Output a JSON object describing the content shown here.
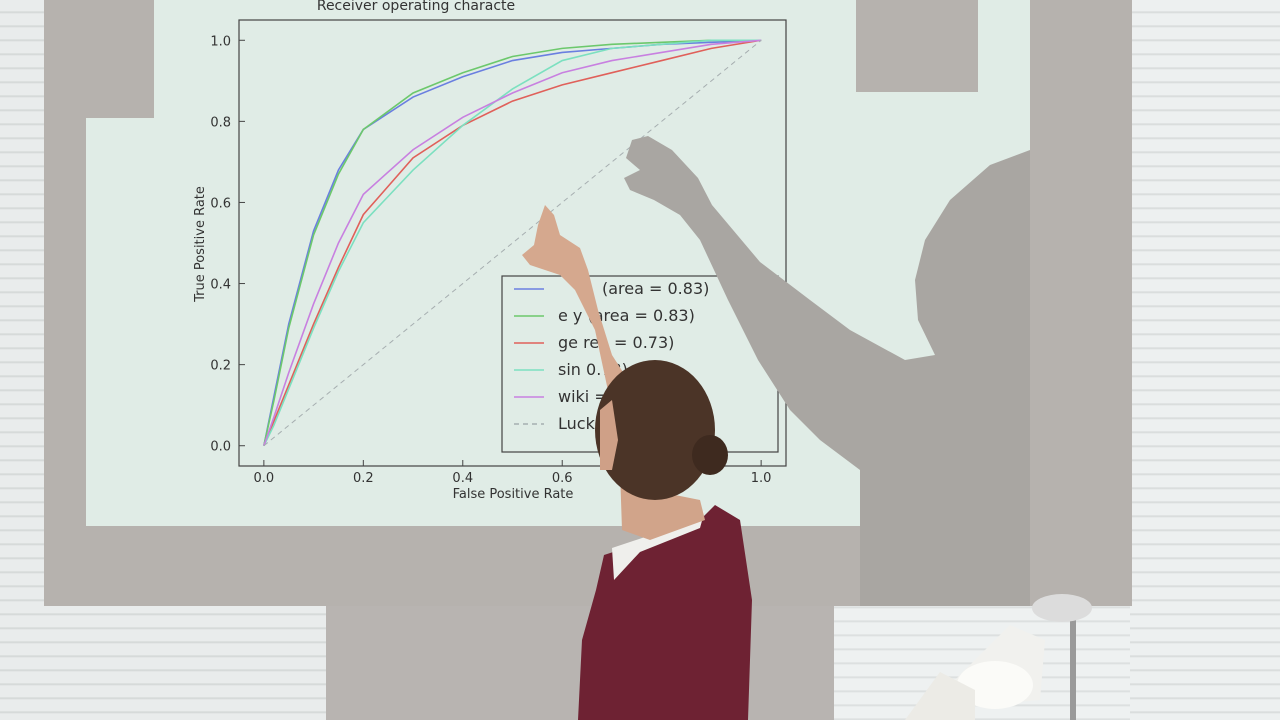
{
  "slide": {
    "title": "Receiver operating characte",
    "xlabel": "False Positive Rate",
    "ylabel": "True Positive Rate"
  },
  "chart_data": {
    "type": "line",
    "title": "Receiver operating characte",
    "xlabel": "False Positive Rate",
    "ylabel": "True Positive Rate",
    "xlim": [
      -0.05,
      1.05
    ],
    "ylim": [
      -0.05,
      1.05
    ],
    "x_ticks": [
      "0.0",
      "0.2",
      "0.4",
      "0.6",
      "0.8",
      "1.0"
    ],
    "y_ticks": [
      "0.0",
      "0.2",
      "0.4",
      "0.6",
      "0.8",
      "1.0"
    ],
    "grid": false,
    "legend_position": "lower-right",
    "series": [
      {
        "color": "#6a7fe0",
        "x": [
          0,
          0.02,
          0.05,
          0.1,
          0.15,
          0.2,
          0.3,
          0.4,
          0.5,
          0.6,
          0.7,
          0.8,
          0.9,
          1.0
        ],
        "y": [
          0,
          0.12,
          0.3,
          0.53,
          0.68,
          0.78,
          0.86,
          0.91,
          0.95,
          0.97,
          0.98,
          0.99,
          0.995,
          1.0
        ]
      },
      {
        "color": "#6cc86c",
        "x": [
          0,
          0.02,
          0.05,
          0.1,
          0.15,
          0.2,
          0.3,
          0.4,
          0.5,
          0.6,
          0.7,
          0.8,
          0.9,
          1.0
        ],
        "y": [
          0,
          0.11,
          0.29,
          0.52,
          0.67,
          0.78,
          0.87,
          0.92,
          0.96,
          0.98,
          0.99,
          0.995,
          1.0,
          1.0
        ]
      },
      {
        "color": "#e0605a",
        "x": [
          0,
          0.02,
          0.05,
          0.1,
          0.15,
          0.2,
          0.3,
          0.4,
          0.5,
          0.6,
          0.7,
          0.8,
          0.9,
          1.0
        ],
        "y": [
          0,
          0.06,
          0.15,
          0.3,
          0.44,
          0.57,
          0.71,
          0.79,
          0.85,
          0.89,
          0.92,
          0.95,
          0.98,
          1.0
        ]
      },
      {
        "color": "#7ce0c0",
        "x": [
          0,
          0.02,
          0.05,
          0.1,
          0.15,
          0.2,
          0.3,
          0.4,
          0.5,
          0.6,
          0.7,
          0.8,
          0.9,
          1.0
        ],
        "y": [
          0,
          0.05,
          0.14,
          0.29,
          0.43,
          0.55,
          0.68,
          0.79,
          0.88,
          0.95,
          0.98,
          0.99,
          1.0,
          1.0
        ]
      },
      {
        "color": "#c880e0",
        "x": [
          0,
          0.02,
          0.05,
          0.1,
          0.15,
          0.2,
          0.3,
          0.4,
          0.5,
          0.6,
          0.7,
          0.8,
          0.9,
          1.0
        ],
        "y": [
          0,
          0.07,
          0.18,
          0.35,
          0.5,
          0.62,
          0.73,
          0.81,
          0.87,
          0.92,
          0.95,
          0.97,
          0.99,
          1.0
        ]
      },
      {
        "color": "#a6aeb0",
        "dashed": true,
        "x": [
          0,
          1
        ],
        "y": [
          0,
          1
        ]
      }
    ],
    "legend": [
      {
        "text": "(area = 0.83)",
        "color": "#6a7fe0"
      },
      {
        "text": "e    y  (area = 0.83)",
        "color": "#6cc86c"
      },
      {
        "text": "ge      rea = 0.73)",
        "color": "#e0605a"
      },
      {
        "text": "sin            0.73)",
        "color": "#7ce0c0"
      },
      {
        "text": "wiki          = 0.75)",
        "color": "#c880e0"
      },
      {
        "text": "Luck",
        "color": "#a6aeb0"
      }
    ]
  }
}
